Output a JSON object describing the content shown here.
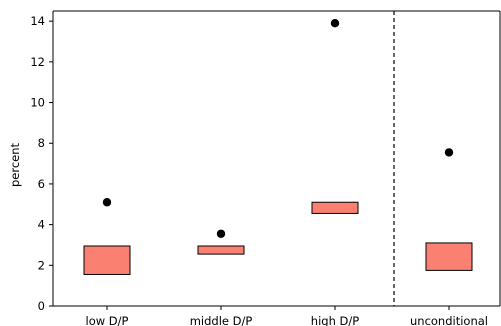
{
  "chart_data": {
    "type": "box",
    "title": "",
    "xlabel": "",
    "ylabel": "percent",
    "ylim": [
      0,
      14.5
    ],
    "yticks": [
      "0",
      "2",
      "4",
      "6",
      "8",
      "10",
      "12",
      "14"
    ],
    "categories": [
      "low D/P",
      "middle D/P",
      "high D/P",
      "unconditional"
    ],
    "boxes": [
      {
        "low": 1.55,
        "high": 2.95,
        "point": 5.1
      },
      {
        "low": 2.55,
        "high": 2.95,
        "point": 3.55
      },
      {
        "low": 4.55,
        "high": 5.1,
        "point": 13.9
      },
      {
        "low": 1.75,
        "high": 3.1,
        "point": 7.55
      }
    ],
    "separator_after_category": "high D/P",
    "box_color": "#fa8072",
    "point_color": "#000000",
    "grid": false
  }
}
